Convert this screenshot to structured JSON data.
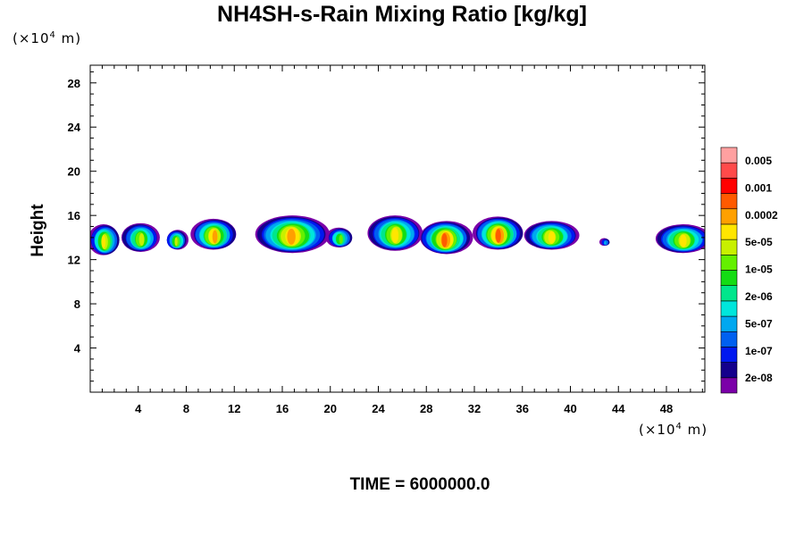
{
  "chart_data": {
    "type": "heatmap",
    "title": "NH4SH-s-Rain Mixing Ratio [kg/kg]",
    "xlabel": "",
    "ylabel": "Height",
    "x_unit": "(×10⁴ m)",
    "y_unit": "(×10⁴ m)",
    "x_unit_base": "(×10",
    "x_unit_exp": "4",
    "x_unit_tail": " m)",
    "y_unit_base": "(×10",
    "y_unit_exp": "4",
    "y_unit_tail": " m)",
    "xlim": [
      0,
      51.2
    ],
    "ylim": [
      0,
      29.6
    ],
    "x_ticks": [
      "4",
      "8",
      "12",
      "16",
      "20",
      "24",
      "28",
      "32",
      "36",
      "40",
      "44",
      "48"
    ],
    "y_ticks": [
      "4",
      "8",
      "12",
      "16",
      "20",
      "24",
      "28"
    ],
    "grid": false,
    "legend_position": "right",
    "legend": {
      "labels": [
        "0.005",
        "0.001",
        "0.0002",
        "5e-05",
        "1e-05",
        "2e-06",
        "5e-07",
        "1e-07",
        "2e-08"
      ],
      "colors": [
        "#7b00a8",
        "#14008c",
        "#0018f0",
        "#0060f0",
        "#00a8f0",
        "#00e6dc",
        "#00e68c",
        "#14dc14",
        "#64f000",
        "#c8f000",
        "#ffe600",
        "#ffa000",
        "#ff5a00",
        "#ff0000",
        "#ff4a4a",
        "#ffa0a0"
      ]
    },
    "cloud_clusters": [
      {
        "x_center": 1.2,
        "y_center": 13.8,
        "width": 2.6,
        "height": 2.8,
        "peak_color_index": 10
      },
      {
        "x_center": 4.2,
        "y_center": 14.0,
        "width": 3.2,
        "height": 2.6,
        "peak_color_index": 9
      },
      {
        "x_center": 7.2,
        "y_center": 13.8,
        "width": 1.8,
        "height": 1.8,
        "peak_color_index": 9
      },
      {
        "x_center": 10.3,
        "y_center": 14.3,
        "width": 3.8,
        "height": 2.8,
        "peak_color_index": 11
      },
      {
        "x_center": 16.8,
        "y_center": 14.3,
        "width": 6.2,
        "height": 3.4,
        "peak_color_index": 11
      },
      {
        "x_center": 20.8,
        "y_center": 14.0,
        "width": 2.2,
        "height": 1.8,
        "peak_color_index": 8
      },
      {
        "x_center": 25.4,
        "y_center": 14.4,
        "width": 4.6,
        "height": 3.2,
        "peak_color_index": 10
      },
      {
        "x_center": 29.6,
        "y_center": 14.0,
        "width": 4.4,
        "height": 3.0,
        "peak_color_index": 12
      },
      {
        "x_center": 34.0,
        "y_center": 14.4,
        "width": 4.2,
        "height": 3.0,
        "peak_color_index": 12
      },
      {
        "x_center": 38.4,
        "y_center": 14.2,
        "width": 4.6,
        "height": 2.6,
        "peak_color_index": 10
      },
      {
        "x_center": 42.9,
        "y_center": 13.6,
        "width": 0.8,
        "height": 0.7,
        "peak_color_index": 4
      },
      {
        "x_center": 49.4,
        "y_center": 13.9,
        "width": 4.6,
        "height": 2.6,
        "peak_color_index": 10
      }
    ]
  },
  "time_label": "TIME = 6000000.0"
}
